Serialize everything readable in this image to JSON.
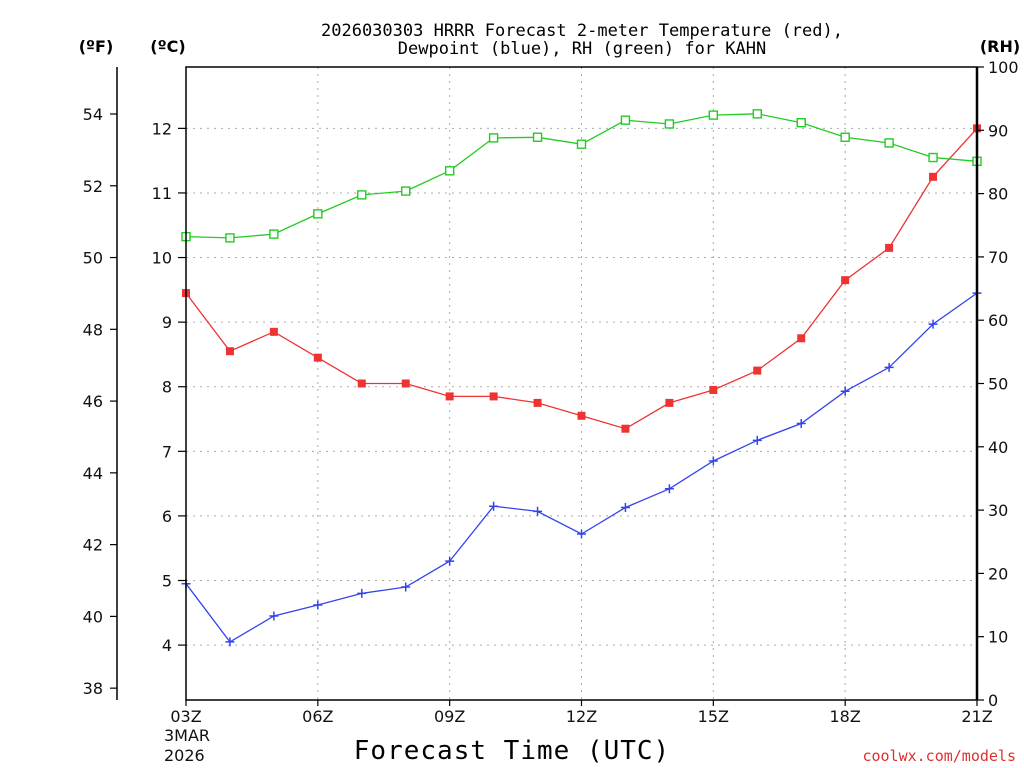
{
  "chart_data": {
    "type": "line",
    "title_line1": "2026030303 HRRR Forecast 2-meter Temperature (red),",
    "title_line2": "Dewpoint (blue), RH (green) for KAHN",
    "xlabel": "Forecast Time (UTC)",
    "watermark": "coolwx.com/models",
    "date_lines": [
      "3MAR",
      "2026"
    ],
    "unit_f": "(ºF)",
    "unit_c": "(ºC)",
    "unit_rh": "(RH)",
    "x_hours": [
      3,
      4,
      5,
      6,
      7,
      8,
      9,
      10,
      11,
      12,
      13,
      14,
      15,
      16,
      17,
      18,
      19,
      20,
      21
    ],
    "x_ticks": [
      {
        "hour": 3,
        "label": "03Z"
      },
      {
        "hour": 6,
        "label": "06Z"
      },
      {
        "hour": 9,
        "label": "09Z"
      },
      {
        "hour": 12,
        "label": "12Z"
      },
      {
        "hour": 15,
        "label": "15Z"
      },
      {
        "hour": 18,
        "label": "18Z"
      },
      {
        "hour": 21,
        "label": "21Z"
      }
    ],
    "xlim": [
      3,
      21
    ],
    "celsius_axis": {
      "lim": [
        3.15,
        12.95
      ],
      "ticks": [
        "4",
        "5",
        "6",
        "7",
        "8",
        "9",
        "10",
        "11",
        "12"
      ]
    },
    "fahrenheit_axis": {
      "ticks": [
        "38",
        "40",
        "42",
        "44",
        "46",
        "48",
        "50",
        "52",
        "54"
      ]
    },
    "rh_axis": {
      "lim": [
        0,
        100
      ],
      "ticks": [
        "0",
        "10",
        "20",
        "30",
        "40",
        "50",
        "60",
        "70",
        "80",
        "90",
        "100"
      ]
    },
    "grid": true,
    "series": [
      {
        "name": "Temperature",
        "axis": "celsius",
        "color": "#ee3333",
        "marker": "filled-square",
        "values": [
          9.45,
          8.55,
          8.85,
          8.45,
          8.05,
          8.05,
          7.85,
          7.85,
          7.75,
          7.55,
          7.35,
          7.75,
          7.95,
          8.25,
          8.75,
          9.65,
          10.15,
          11.25,
          12.0
        ]
      },
      {
        "name": "Dewpoint",
        "axis": "celsius",
        "color": "#3344ee",
        "marker": "plus",
        "values": [
          4.95,
          4.05,
          4.45,
          4.62,
          4.8,
          4.9,
          5.3,
          6.15,
          6.07,
          5.72,
          6.13,
          6.42,
          6.85,
          7.17,
          7.43,
          7.93,
          8.3,
          8.97,
          9.45
        ]
      },
      {
        "name": "RH",
        "axis": "rh",
        "color": "#22cc22",
        "marker": "open-square",
        "values": [
          73.2,
          73.0,
          73.6,
          76.8,
          79.8,
          80.4,
          83.6,
          88.8,
          88.9,
          87.8,
          91.6,
          91.0,
          92.4,
          92.6,
          91.2,
          88.9,
          88.0,
          85.7,
          85.1
        ]
      }
    ]
  }
}
